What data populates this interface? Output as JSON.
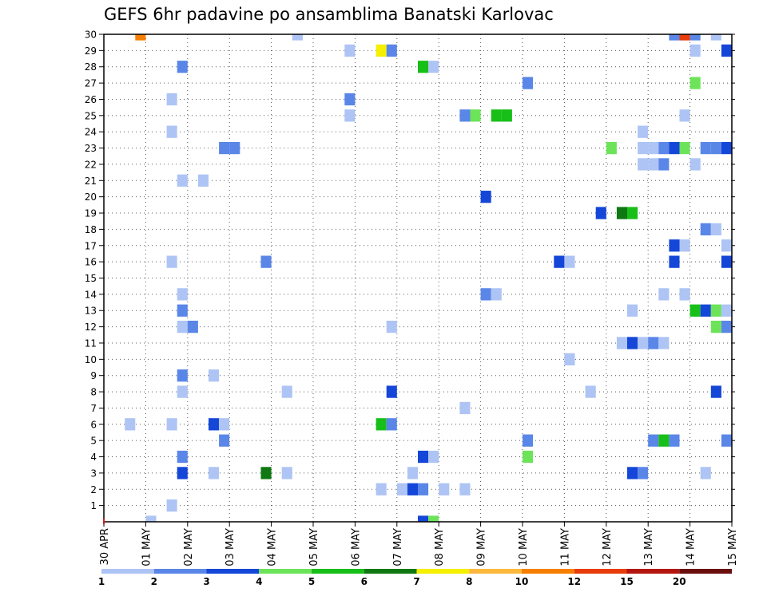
{
  "chart_data": {
    "type": "heatmap",
    "title": "GEFS 6hr padavine po ansamblima Banatski Karlovac",
    "xlabel": "",
    "ylabel": "",
    "x_ticks": [
      "30 APR",
      "01 MAY",
      "02 MAY",
      "03 MAY",
      "04 MAY",
      "05 MAY",
      "06 MAY",
      "07 MAY",
      "08 MAY",
      "09 MAY",
      "10 MAY",
      "11 MAY",
      "12 MAY",
      "13 MAY",
      "14 MAY",
      "15 MAY"
    ],
    "x_range_days": [
      0,
      15
    ],
    "y_ticks": [
      1,
      2,
      3,
      4,
      5,
      6,
      7,
      8,
      9,
      10,
      11,
      12,
      13,
      14,
      15,
      16,
      17,
      18,
      19,
      20,
      21,
      22,
      23,
      24,
      25,
      26,
      27,
      28,
      29,
      30
    ],
    "y_range": [
      0,
      30
    ],
    "grid": true,
    "colorbar": {
      "labels": [
        "1",
        "2",
        "3",
        "4",
        "5",
        "6",
        "7",
        "8",
        "10",
        "12",
        "15",
        "20"
      ],
      "colors": [
        "#aec4f4",
        "#5a86e8",
        "#1446d8",
        "#6de35a",
        "#18bf18",
        "#0f7812",
        "#f5ef00",
        "#fcb83c",
        "#f77f00",
        "#e83c0a",
        "#b3160f",
        "#6a0d0d"
      ]
    },
    "cells": [
      {
        "t": 0.875,
        "m": 30,
        "c": 8
      },
      {
        "t": 4.625,
        "m": 30,
        "c": 0
      },
      {
        "t": 13.625,
        "m": 30,
        "c": 1
      },
      {
        "t": 13.875,
        "m": 30,
        "c": 9
      },
      {
        "t": 14.125,
        "m": 30,
        "c": 1
      },
      {
        "t": 14.625,
        "m": 30,
        "c": 0
      },
      {
        "t": 5.875,
        "m": 29,
        "c": 0
      },
      {
        "t": 6.625,
        "m": 29,
        "c": 6
      },
      {
        "t": 6.875,
        "m": 29,
        "c": 1
      },
      {
        "t": 14.125,
        "m": 29,
        "c": 0
      },
      {
        "t": 14.875,
        "m": 29,
        "c": 2
      },
      {
        "t": 1.875,
        "m": 28,
        "c": 1
      },
      {
        "t": 7.625,
        "m": 28,
        "c": 4
      },
      {
        "t": 7.875,
        "m": 28,
        "c": 0
      },
      {
        "t": 10.125,
        "m": 27,
        "c": 1
      },
      {
        "t": 14.125,
        "m": 27,
        "c": 3
      },
      {
        "t": 1.625,
        "m": 26,
        "c": 0
      },
      {
        "t": 5.875,
        "m": 26,
        "c": 1
      },
      {
        "t": 5.875,
        "m": 25,
        "c": 0
      },
      {
        "t": 8.625,
        "m": 25,
        "c": 1
      },
      {
        "t": 8.875,
        "m": 25,
        "c": 3
      },
      {
        "t": 9.375,
        "m": 25,
        "c": 4
      },
      {
        "t": 9.625,
        "m": 25,
        "c": 4
      },
      {
        "t": 13.875,
        "m": 25,
        "c": 0
      },
      {
        "t": 1.625,
        "m": 24,
        "c": 0
      },
      {
        "t": 12.875,
        "m": 24,
        "c": 0
      },
      {
        "t": 2.875,
        "m": 23,
        "c": 1
      },
      {
        "t": 3.125,
        "m": 23,
        "c": 1
      },
      {
        "t": 12.125,
        "m": 23,
        "c": 3
      },
      {
        "t": 12.875,
        "m": 23,
        "c": 0
      },
      {
        "t": 13.125,
        "m": 23,
        "c": 0
      },
      {
        "t": 13.375,
        "m": 23,
        "c": 1
      },
      {
        "t": 13.625,
        "m": 23,
        "c": 2
      },
      {
        "t": 13.875,
        "m": 23,
        "c": 3
      },
      {
        "t": 14.375,
        "m": 23,
        "c": 1
      },
      {
        "t": 14.625,
        "m": 23,
        "c": 1
      },
      {
        "t": 14.875,
        "m": 23,
        "c": 2
      },
      {
        "t": 12.875,
        "m": 22,
        "c": 0
      },
      {
        "t": 13.125,
        "m": 22,
        "c": 0
      },
      {
        "t": 13.375,
        "m": 22,
        "c": 1
      },
      {
        "t": 14.125,
        "m": 22,
        "c": 0
      },
      {
        "t": 1.875,
        "m": 21,
        "c": 0
      },
      {
        "t": 2.375,
        "m": 21,
        "c": 0
      },
      {
        "t": 9.125,
        "m": 20,
        "c": 2
      },
      {
        "t": 11.875,
        "m": 19,
        "c": 2
      },
      {
        "t": 12.375,
        "m": 19,
        "c": 5
      },
      {
        "t": 12.625,
        "m": 19,
        "c": 4
      },
      {
        "t": 14.375,
        "m": 18,
        "c": 1
      },
      {
        "t": 14.625,
        "m": 18,
        "c": 0
      },
      {
        "t": 13.625,
        "m": 17,
        "c": 2
      },
      {
        "t": 13.875,
        "m": 17,
        "c": 0
      },
      {
        "t": 14.875,
        "m": 17,
        "c": 0
      },
      {
        "t": 1.625,
        "m": 16,
        "c": 0
      },
      {
        "t": 3.875,
        "m": 16,
        "c": 1
      },
      {
        "t": 10.875,
        "m": 16,
        "c": 2
      },
      {
        "t": 11.125,
        "m": 16,
        "c": 0
      },
      {
        "t": 13.625,
        "m": 16,
        "c": 2
      },
      {
        "t": 14.875,
        "m": 16,
        "c": 2
      },
      {
        "t": 1.875,
        "m": 14,
        "c": 0
      },
      {
        "t": 9.125,
        "m": 14,
        "c": 1
      },
      {
        "t": 9.375,
        "m": 14,
        "c": 0
      },
      {
        "t": 13.375,
        "m": 14,
        "c": 0
      },
      {
        "t": 13.875,
        "m": 14,
        "c": 0
      },
      {
        "t": 1.875,
        "m": 13,
        "c": 1
      },
      {
        "t": 12.625,
        "m": 13,
        "c": 0
      },
      {
        "t": 14.125,
        "m": 13,
        "c": 4
      },
      {
        "t": 14.375,
        "m": 13,
        "c": 2
      },
      {
        "t": 14.625,
        "m": 13,
        "c": 3
      },
      {
        "t": 14.875,
        "m": 13,
        "c": 0
      },
      {
        "t": 1.875,
        "m": 12,
        "c": 0
      },
      {
        "t": 2.125,
        "m": 12,
        "c": 1
      },
      {
        "t": 6.875,
        "m": 12,
        "c": 0
      },
      {
        "t": 14.625,
        "m": 12,
        "c": 3
      },
      {
        "t": 14.875,
        "m": 12,
        "c": 1
      },
      {
        "t": 12.375,
        "m": 11,
        "c": 0
      },
      {
        "t": 12.625,
        "m": 11,
        "c": 2
      },
      {
        "t": 12.875,
        "m": 11,
        "c": 0
      },
      {
        "t": 13.125,
        "m": 11,
        "c": 1
      },
      {
        "t": 13.375,
        "m": 11,
        "c": 0
      },
      {
        "t": 11.125,
        "m": 10,
        "c": 0
      },
      {
        "t": 1.875,
        "m": 9,
        "c": 1
      },
      {
        "t": 2.625,
        "m": 9,
        "c": 0
      },
      {
        "t": 1.875,
        "m": 8,
        "c": 0
      },
      {
        "t": 4.375,
        "m": 8,
        "c": 0
      },
      {
        "t": 6.875,
        "m": 8,
        "c": 2
      },
      {
        "t": 11.625,
        "m": 8,
        "c": 0
      },
      {
        "t": 14.625,
        "m": 8,
        "c": 2
      },
      {
        "t": 8.625,
        "m": 7,
        "c": 0
      },
      {
        "t": 0.625,
        "m": 6,
        "c": 0
      },
      {
        "t": 1.625,
        "m": 6,
        "c": 0
      },
      {
        "t": 2.625,
        "m": 6,
        "c": 2
      },
      {
        "t": 2.875,
        "m": 6,
        "c": 0
      },
      {
        "t": 6.625,
        "m": 6,
        "c": 4
      },
      {
        "t": 6.875,
        "m": 6,
        "c": 1
      },
      {
        "t": 2.875,
        "m": 5,
        "c": 1
      },
      {
        "t": 10.125,
        "m": 5,
        "c": 1
      },
      {
        "t": 13.125,
        "m": 5,
        "c": 1
      },
      {
        "t": 13.375,
        "m": 5,
        "c": 4
      },
      {
        "t": 13.625,
        "m": 5,
        "c": 1
      },
      {
        "t": 14.875,
        "m": 5,
        "c": 1
      },
      {
        "t": 1.875,
        "m": 4,
        "c": 1
      },
      {
        "t": 7.625,
        "m": 4,
        "c": 2
      },
      {
        "t": 7.875,
        "m": 4,
        "c": 0
      },
      {
        "t": 10.125,
        "m": 4,
        "c": 3
      },
      {
        "t": 1.875,
        "m": 3,
        "c": 2
      },
      {
        "t": 2.625,
        "m": 3,
        "c": 0
      },
      {
        "t": 3.875,
        "m": 3,
        "c": 5
      },
      {
        "t": 4.375,
        "m": 3,
        "c": 0
      },
      {
        "t": 7.375,
        "m": 3,
        "c": 0
      },
      {
        "t": 12.625,
        "m": 3,
        "c": 2
      },
      {
        "t": 12.875,
        "m": 3,
        "c": 1
      },
      {
        "t": 14.375,
        "m": 3,
        "c": 0
      },
      {
        "t": 6.625,
        "m": 2,
        "c": 0
      },
      {
        "t": 7.125,
        "m": 2,
        "c": 0
      },
      {
        "t": 7.375,
        "m": 2,
        "c": 2
      },
      {
        "t": 7.625,
        "m": 2,
        "c": 1
      },
      {
        "t": 8.125,
        "m": 2,
        "c": 0
      },
      {
        "t": 8.625,
        "m": 2,
        "c": 0
      },
      {
        "t": 1.625,
        "m": 1,
        "c": 0
      },
      {
        "t": 1.125,
        "m": 0,
        "c": 0
      },
      {
        "t": 7.625,
        "m": 0,
        "c": 2
      },
      {
        "t": 7.875,
        "m": 0,
        "c": 3
      }
    ]
  }
}
